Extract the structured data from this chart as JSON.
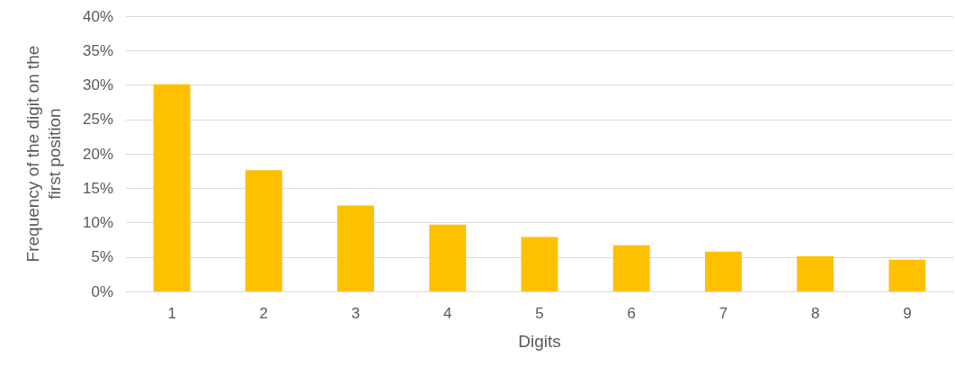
{
  "chart_data": {
    "type": "bar",
    "xlabel": "Digits",
    "ylabel": "Frequency of the digit on the\nfirst position",
    "categories": [
      "1",
      "2",
      "3",
      "4",
      "5",
      "6",
      "7",
      "8",
      "9"
    ],
    "values": [
      30.1,
      17.6,
      12.5,
      9.7,
      7.9,
      6.7,
      5.8,
      5.1,
      4.6
    ],
    "color": "#ffc000",
    "ylim": [
      0,
      40
    ],
    "yticks": [
      {
        "value": 0,
        "label": "0%"
      },
      {
        "value": 5,
        "label": "5%"
      },
      {
        "value": 10,
        "label": "10%"
      },
      {
        "value": 15,
        "label": "15%"
      },
      {
        "value": 20,
        "label": "20%"
      },
      {
        "value": 25,
        "label": "25%"
      },
      {
        "value": 30,
        "label": "30%"
      },
      {
        "value": 35,
        "label": "35%"
      },
      {
        "value": 40,
        "label": "40%"
      }
    ],
    "grid": "y"
  }
}
